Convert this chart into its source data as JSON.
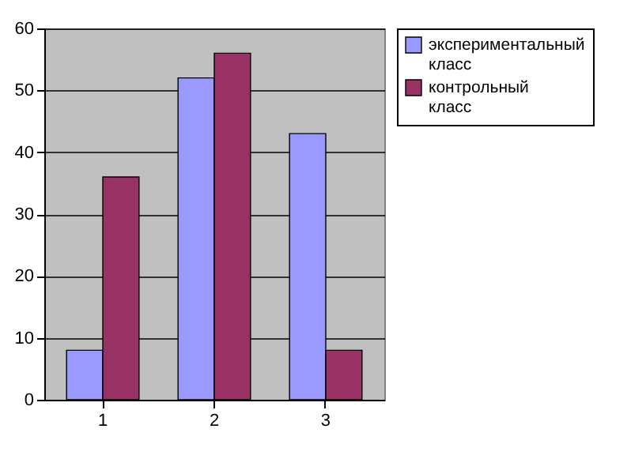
{
  "chart_data": {
    "type": "bar",
    "categories": [
      "1",
      "2",
      "3"
    ],
    "series": [
      {
        "name": "экспериментальный класс",
        "color": "#9999ff",
        "values": [
          8,
          52,
          43
        ]
      },
      {
        "name": "контрольный класс",
        "color": "#993366",
        "values": [
          36,
          56,
          8
        ]
      }
    ],
    "ylim": [
      0,
      60
    ],
    "yticks": [
      0,
      10,
      20,
      30,
      40,
      50,
      60
    ],
    "grid": "y",
    "legend": "right"
  }
}
